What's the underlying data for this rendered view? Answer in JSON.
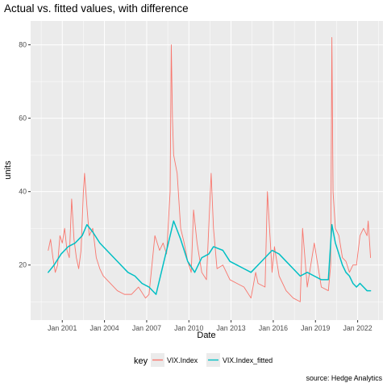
{
  "chart_data": {
    "type": "line",
    "title": "Actual vs. fitted values, with difference",
    "xlabel": "Date",
    "ylabel": "units",
    "caption": "source: Hedge Analytics",
    "x_ticks": [
      "Jan 2001",
      "Jan 2004",
      "Jan 2007",
      "Jan 2010",
      "Jan 2013",
      "Jan 2016",
      "Jan 2019",
      "Jan 2022"
    ],
    "x_tick_years": [
      2001,
      2004,
      2007,
      2010,
      2013,
      2016,
      2019,
      2022
    ],
    "xlim": [
      1998.75,
      2023.8
    ],
    "y_ticks": [
      20,
      40,
      60,
      80
    ],
    "ylim": [
      5,
      86.5
    ],
    "grid": true,
    "legend": {
      "title": "key",
      "position": "bottom",
      "items": [
        "VIX.Index",
        "VIX.Index_fitted"
      ]
    },
    "colors": {
      "panel_bg": "#ebebeb",
      "grid_major": "#ffffff",
      "actual": "#f8766d",
      "fitted": "#00bfc4"
    },
    "series": [
      {
        "name": "VIX.Index",
        "x": [
          "2000-01",
          "2000-03",
          "2000-05",
          "2000-07",
          "2000-09",
          "2000-11",
          "2001-01",
          "2001-03",
          "2001-05",
          "2001-07",
          "2001-09",
          "2001-11",
          "2002-01",
          "2002-03",
          "2002-05",
          "2002-07",
          "2002-08",
          "2002-10",
          "2002-12",
          "2003-03",
          "2003-06",
          "2003-09",
          "2003-12",
          "2004-06",
          "2004-12",
          "2005-06",
          "2005-12",
          "2006-06",
          "2006-12",
          "2007-03",
          "2007-08",
          "2007-12",
          "2008-03",
          "2008-06",
          "2008-09",
          "2008-10",
          "2008-11",
          "2008-12",
          "2009-03",
          "2009-06",
          "2009-09",
          "2009-12",
          "2010-03",
          "2010-05",
          "2010-08",
          "2010-12",
          "2011-04",
          "2011-08",
          "2011-10",
          "2012-01",
          "2012-06",
          "2012-12",
          "2013-06",
          "2013-12",
          "2014-06",
          "2014-10",
          "2014-12",
          "2015-06",
          "2015-08",
          "2015-12",
          "2016-02",
          "2016-06",
          "2016-12",
          "2017-06",
          "2017-12",
          "2018-02",
          "2018-06",
          "2018-12",
          "2019-06",
          "2019-12",
          "2020-02",
          "2020-03",
          "2020-04",
          "2020-06",
          "2020-09",
          "2020-12",
          "2021-03",
          "2021-06",
          "2021-09",
          "2021-12",
          "2022-03",
          "2022-06",
          "2022-09",
          "2022-10",
          "2022-12"
        ],
        "y": [
          24,
          27,
          22,
          18,
          20,
          28,
          26,
          30,
          24,
          22,
          38,
          27,
          22,
          19,
          24,
          40,
          45,
          36,
          28,
          30,
          22,
          19,
          17,
          15,
          13,
          12,
          12,
          14,
          11,
          12,
          28,
          24,
          26,
          23,
          40,
          80,
          60,
          50,
          45,
          30,
          26,
          21,
          18,
          35,
          26,
          18,
          16,
          45,
          30,
          19,
          20,
          16,
          15,
          14,
          11,
          18,
          15,
          14,
          40,
          18,
          25,
          17,
          13,
          11,
          10,
          30,
          14,
          26,
          14,
          13,
          20,
          82,
          40,
          30,
          28,
          22,
          21,
          18,
          20,
          20,
          28,
          30,
          28,
          32,
          22
        ]
      },
      {
        "name": "VIX.Index_fitted",
        "x": [
          "2000-01",
          "2000-06",
          "2000-12",
          "2001-06",
          "2001-12",
          "2002-06",
          "2002-10",
          "2003-03",
          "2003-09",
          "2004-03",
          "2004-09",
          "2005-03",
          "2005-09",
          "2006-03",
          "2006-09",
          "2007-03",
          "2007-09",
          "2008-03",
          "2008-09",
          "2008-12",
          "2009-06",
          "2009-12",
          "2010-06",
          "2010-12",
          "2011-06",
          "2011-10",
          "2012-06",
          "2012-12",
          "2013-06",
          "2013-12",
          "2014-06",
          "2014-12",
          "2015-06",
          "2015-12",
          "2016-06",
          "2016-12",
          "2017-06",
          "2017-12",
          "2018-06",
          "2018-12",
          "2019-06",
          "2019-12",
          "2020-03",
          "2020-06",
          "2020-09",
          "2020-12",
          "2021-03",
          "2021-06",
          "2021-09",
          "2021-12",
          "2022-03",
          "2022-06",
          "2022-09",
          "2022-12"
        ],
        "y": [
          18,
          20,
          23,
          25,
          26,
          28,
          31,
          29,
          26,
          24,
          22,
          20,
          18,
          17,
          15,
          14,
          12,
          20,
          28,
          32,
          27,
          21,
          18,
          22,
          23,
          25,
          24,
          21,
          20,
          19,
          18,
          20,
          22,
          24,
          23,
          21,
          19,
          17,
          18,
          17,
          16,
          16,
          31,
          26,
          23,
          20,
          18,
          17,
          15,
          14,
          15,
          14,
          13,
          13
        ]
      }
    ]
  }
}
